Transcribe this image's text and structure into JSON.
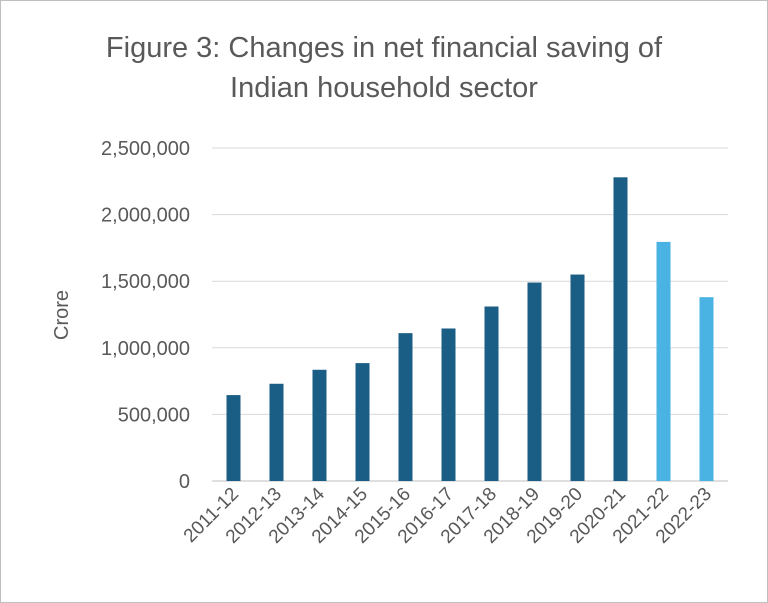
{
  "chart_data": {
    "type": "bar",
    "title_lines": [
      "Figure 3: Changes in net financial saving of",
      "Indian household sector"
    ],
    "xlabel": "",
    "ylabel": "Crore",
    "categories": [
      "2011-12",
      "2012-13",
      "2013-14",
      "2014-15",
      "2015-16",
      "2016-17",
      "2017-18",
      "2018-19",
      "2019-20",
      "2020-21",
      "2021-22",
      "2022-23"
    ],
    "values": [
      645000,
      730000,
      835000,
      885000,
      1110000,
      1145000,
      1310000,
      1490000,
      1550000,
      2280000,
      1795000,
      1380000
    ],
    "bar_colors": [
      "#1b5e85",
      "#1b5e85",
      "#1b5e85",
      "#1b5e85",
      "#1b5e85",
      "#1b5e85",
      "#1b5e85",
      "#1b5e85",
      "#1b5e85",
      "#1b5e85",
      "#4ab3e3",
      "#4ab3e3"
    ],
    "ylim": [
      0,
      2500000
    ],
    "yticks": [
      0,
      500000,
      1000000,
      1500000,
      2000000,
      2500000
    ],
    "ytick_labels": [
      "0",
      "500,000",
      "1,000,000",
      "1,500,000",
      "2,000,000",
      "2,500,000"
    ],
    "grid": true,
    "legend": "none"
  }
}
